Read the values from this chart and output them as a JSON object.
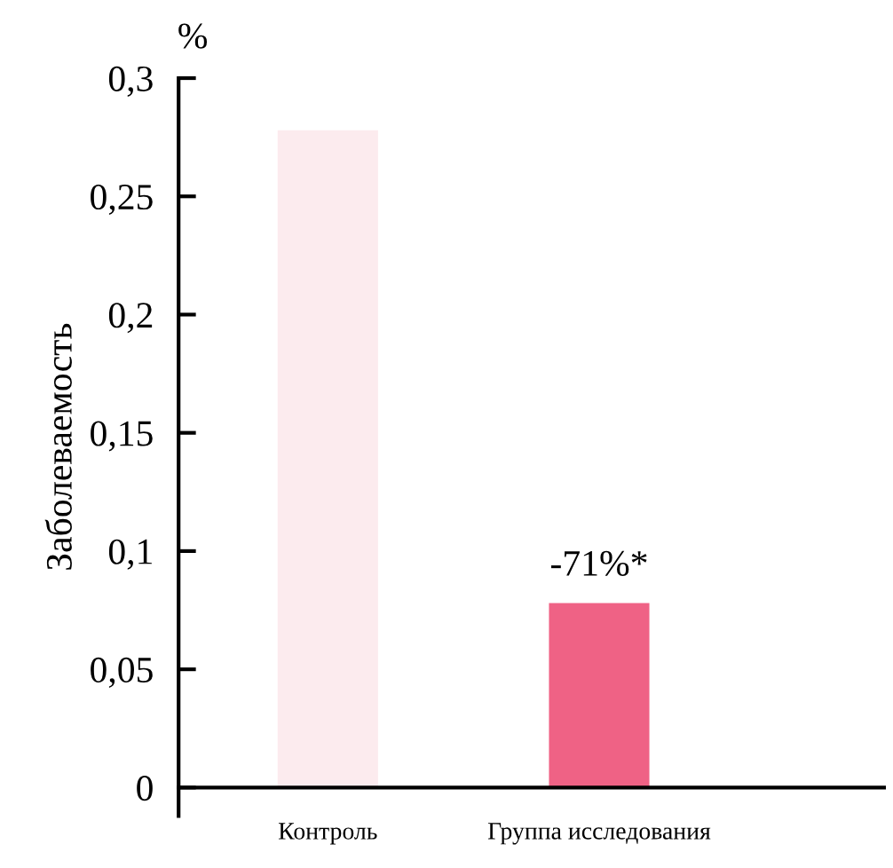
{
  "chart_data": {
    "type": "bar",
    "ylabel": "Заболеваемость",
    "categories": [
      "Контроль",
      "Группа исследования"
    ],
    "values": [
      0.278,
      0.078
    ],
    "colors": [
      "#fcebee",
      "#ef6285"
    ],
    "ylim": [
      -0.012,
      0.3
    ],
    "yticks": [
      {
        "value": 0,
        "label": "0"
      },
      {
        "value": 0.05,
        "label": "0,05"
      },
      {
        "value": 0.1,
        "label": "0,1"
      },
      {
        "value": 0.15,
        "label": "0,15"
      },
      {
        "value": 0.2,
        "label": "0,2"
      },
      {
        "value": 0.25,
        "label": "0,25"
      },
      {
        "value": 0.3,
        "label": "0,3"
      }
    ],
    "annotations": [
      "%",
      {
        "text": "-71%*",
        "x": "Группа исследования",
        "y": 0.078
      }
    ],
    "grid": false
  }
}
